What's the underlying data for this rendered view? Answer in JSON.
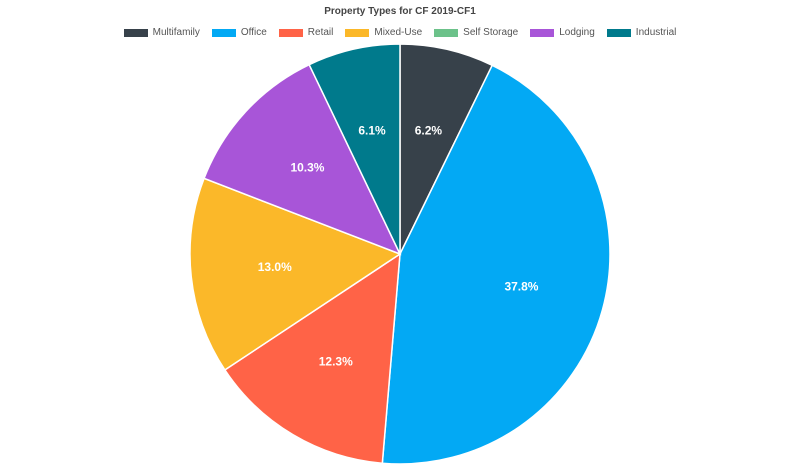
{
  "chart_data": {
    "type": "pie",
    "title": "Property Types for CF 2019-CF1",
    "legend_position": "top",
    "slices": [
      {
        "name": "Multifamily",
        "value": 6.2,
        "label": "6.2%",
        "color": "#37414a"
      },
      {
        "name": "Office",
        "value": 37.8,
        "label": "37.8%",
        "color": "#03a9f4"
      },
      {
        "name": "Retail",
        "value": 12.3,
        "label": "12.3%",
        "color": "#ff6347"
      },
      {
        "name": "Mixed-Use",
        "value": 13.0,
        "label": "13.0%",
        "color": "#fbb829"
      },
      {
        "name": "Self Storage",
        "value": 0,
        "label": "",
        "color": "#6cc28a"
      },
      {
        "name": "Lodging",
        "value": 10.3,
        "label": "10.3%",
        "color": "#a855d8"
      },
      {
        "name": "Industrial",
        "value": 6.1,
        "label": "6.1%",
        "color": "#007a8c"
      }
    ]
  }
}
